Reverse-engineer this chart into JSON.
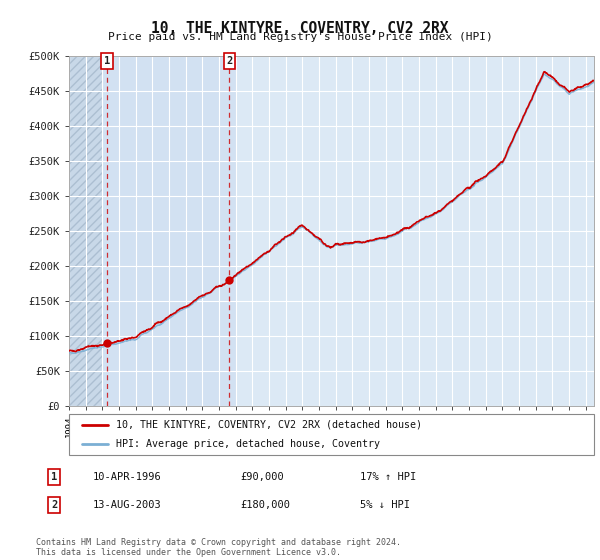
{
  "title": "10, THE KINTYRE, COVENTRY, CV2 2RX",
  "subtitle": "Price paid vs. HM Land Registry's House Price Index (HPI)",
  "ylim": [
    0,
    500000
  ],
  "yticks": [
    0,
    50000,
    100000,
    150000,
    200000,
    250000,
    300000,
    350000,
    400000,
    450000,
    500000
  ],
  "ytick_labels": [
    "£0",
    "£50K",
    "£100K",
    "£150K",
    "£200K",
    "£250K",
    "£300K",
    "£350K",
    "£400K",
    "£450K",
    "£500K"
  ],
  "xmin": 1994,
  "xmax": 2025.5,
  "background_color": "#ffffff",
  "plot_bg_color": "#dce9f5",
  "grid_color": "#ffffff",
  "legend_line1": "10, THE KINTYRE, COVENTRY, CV2 2RX (detached house)",
  "legend_line2": "HPI: Average price, detached house, Coventry",
  "annotation1_label": "1",
  "annotation1_date": "10-APR-1996",
  "annotation1_price": "£90,000",
  "annotation1_hpi": "17% ↑ HPI",
  "annotation2_label": "2",
  "annotation2_date": "13-AUG-2003",
  "annotation2_price": "£180,000",
  "annotation2_hpi": "5% ↓ HPI",
  "footer": "Contains HM Land Registry data © Crown copyright and database right 2024.\nThis data is licensed under the Open Government Licence v3.0.",
  "sale1_x": 1996.27,
  "sale1_y": 90000,
  "sale2_x": 2003.62,
  "sale2_y": 180000,
  "red_line_color": "#cc0000",
  "blue_line_color": "#7bafd4",
  "dot_color": "#cc0000",
  "hatch_region_end": 1996.0,
  "shaded_region_start": 1996.0,
  "shaded_region_end": 2004.0
}
